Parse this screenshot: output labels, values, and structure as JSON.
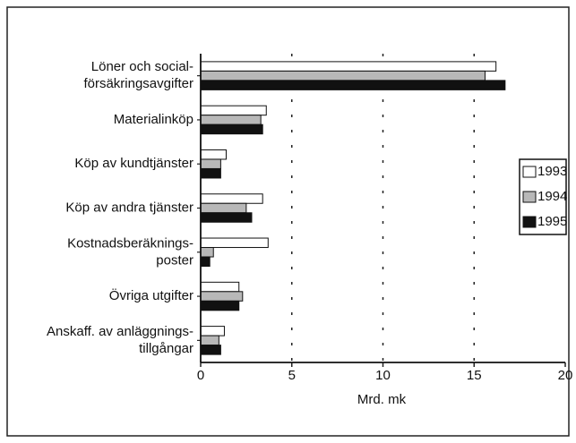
{
  "chart_data": {
    "type": "bar",
    "orientation": "horizontal",
    "x_label": "Mrd. mk",
    "categories": [
      [
        "Löner och social-",
        "försäkringsavgifter"
      ],
      [
        "Materialinköp"
      ],
      [
        "Köp av kundtjänster"
      ],
      [
        "Köp av andra tjänster"
      ],
      [
        "Kostnadsberäknings-",
        "poster"
      ],
      [
        "Övriga utgifter"
      ],
      [
        "Anskaff. av anläggnings-",
        "tillgångar"
      ]
    ],
    "series": [
      {
        "name": "1993",
        "color": "#ffffff",
        "values": [
          16.2,
          3.6,
          1.4,
          3.4,
          3.7,
          2.1,
          1.3
        ]
      },
      {
        "name": "1994",
        "color": "#b8b8b8",
        "values": [
          15.6,
          3.3,
          1.1,
          2.5,
          0.7,
          2.3,
          1.0
        ]
      },
      {
        "name": "1995",
        "color": "#111111",
        "values": [
          16.7,
          3.4,
          1.1,
          2.8,
          0.5,
          2.1,
          1.1
        ]
      }
    ],
    "xlim": [
      0,
      20
    ],
    "xticks": [
      0,
      5,
      10,
      15,
      20
    ],
    "grid": true,
    "legend": "right"
  }
}
